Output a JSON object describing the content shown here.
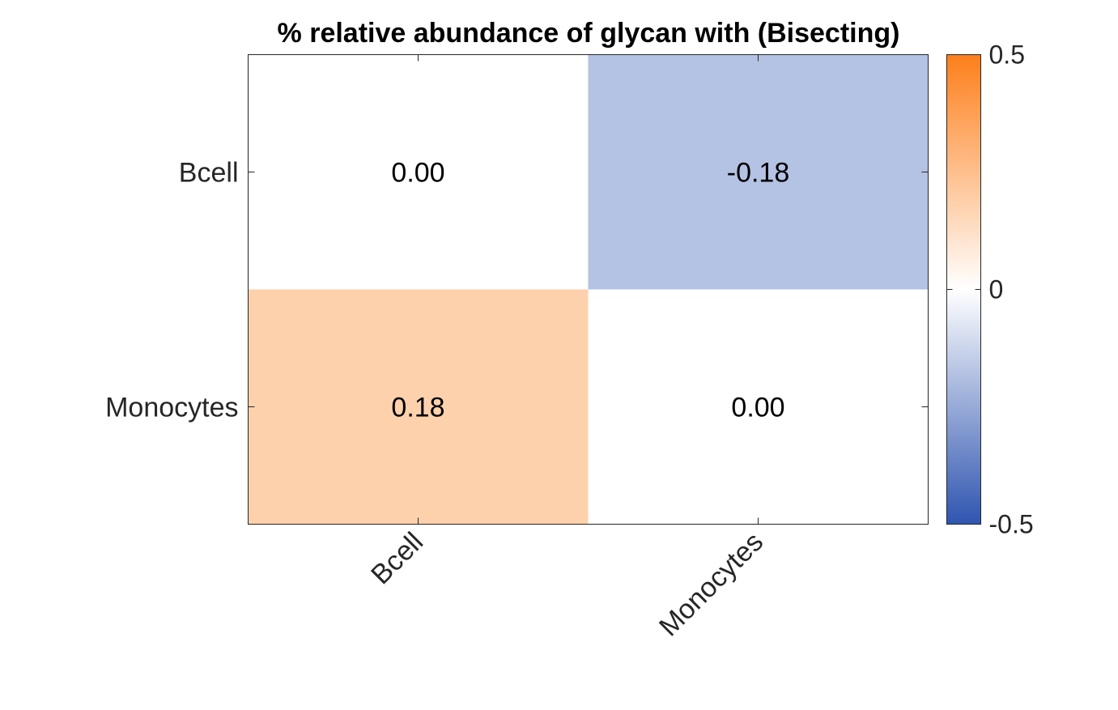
{
  "chart_data": {
    "type": "heatmap",
    "title": "% relative abundance of glycan with (Bisecting)",
    "row_labels": [
      "Bcell",
      "Monocytes"
    ],
    "col_labels": [
      "Bcell",
      "Monocytes"
    ],
    "values": [
      [
        0.0,
        -0.18
      ],
      [
        0.18,
        0.0
      ]
    ],
    "value_labels": [
      [
        "0.00",
        "-0.18"
      ],
      [
        "0.18",
        "0.00"
      ]
    ],
    "colorbar": {
      "range": [
        -0.5,
        0.5
      ],
      "ticks": [
        0.5,
        0,
        -0.5
      ],
      "tick_labels": [
        "0.5",
        "0",
        "-0.5"
      ],
      "low_color": "#2f55b0",
      "mid_color": "#ffffff",
      "high_color": "#fd7f1b",
      "placement": "right"
    },
    "grid": false
  }
}
